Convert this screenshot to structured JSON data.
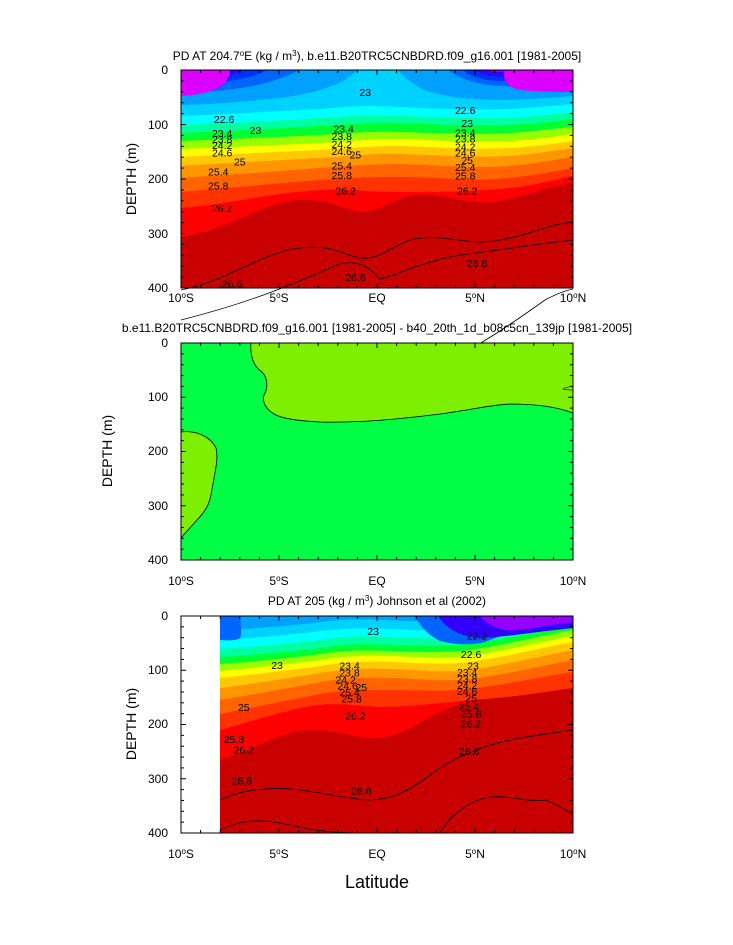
{
  "chart_data": [
    {
      "type": "heatmap",
      "title": "PD AT 204.7°E (kg / m³), b.e11.B20TRC5CNBDRD.f09_g16.001 [1981-2005]",
      "title_parts": [
        "PD AT 204.7",
        "o",
        "E (kg / m",
        "3",
        "), b.e11.B20TRC5CNBDRD.f09_g16.001 [1981-2005]"
      ],
      "ylabel": "DEPTH (m)",
      "xlabel": "",
      "x_range": [
        -10,
        10
      ],
      "y_range": [
        400,
        0
      ],
      "x_ticks": [
        -10,
        -5,
        0,
        5,
        10
      ],
      "y_ticks": [
        0,
        100,
        200,
        300,
        400
      ],
      "y_tick_labels": [
        "0",
        "100",
        "200",
        "300",
        "400"
      ],
      "data_extent": [
        -10,
        10
      ],
      "contour_interval": 0.2,
      "contour_labels": [
        {
          "text": "23",
          "x": -0.6,
          "y": 40
        },
        {
          "text": "22.6",
          "x": -7.8,
          "y": 90
        },
        {
          "text": "23",
          "x": -6.2,
          "y": 110
        },
        {
          "text": "23.4",
          "x": -7.9,
          "y": 116
        },
        {
          "text": "23.8",
          "x": -7.9,
          "y": 127
        },
        {
          "text": "24.2",
          "x": -7.9,
          "y": 138
        },
        {
          "text": "24.6",
          "x": -7.9,
          "y": 151
        },
        {
          "text": "25",
          "x": -7.0,
          "y": 168
        },
        {
          "text": "25.4",
          "x": -8.1,
          "y": 186
        },
        {
          "text": "25.8",
          "x": -8.1,
          "y": 212
        },
        {
          "text": "26.2",
          "x": -7.9,
          "y": 253
        },
        {
          "text": "26.6",
          "x": -7.4,
          "y": 392
        },
        {
          "text": "23.4",
          "x": -1.7,
          "y": 107
        },
        {
          "text": "23.8",
          "x": -1.8,
          "y": 121
        },
        {
          "text": "24.2",
          "x": -1.8,
          "y": 136
        },
        {
          "text": "24.6",
          "x": -1.8,
          "y": 149
        },
        {
          "text": "25",
          "x": -1.1,
          "y": 155
        },
        {
          "text": "25.4",
          "x": -1.8,
          "y": 175
        },
        {
          "text": "25.8",
          "x": -1.8,
          "y": 193
        },
        {
          "text": "26.2",
          "x": -1.6,
          "y": 221
        },
        {
          "text": "26.6",
          "x": -1.1,
          "y": 380
        },
        {
          "text": "22.6",
          "x": 4.5,
          "y": 73
        },
        {
          "text": "23",
          "x": 4.6,
          "y": 97
        },
        {
          "text": "23.4",
          "x": 4.5,
          "y": 115
        },
        {
          "text": "23.8",
          "x": 4.5,
          "y": 126
        },
        {
          "text": "24.2",
          "x": 4.5,
          "y": 140
        },
        {
          "text": "24.6",
          "x": 4.5,
          "y": 151
        },
        {
          "text": "25",
          "x": 4.6,
          "y": 165
        },
        {
          "text": "25.4",
          "x": 4.5,
          "y": 178
        },
        {
          "text": "25.8",
          "x": 4.5,
          "y": 194
        },
        {
          "text": "26.2",
          "x": 4.6,
          "y": 221
        },
        {
          "text": "26.8",
          "x": 5.1,
          "y": 354
        }
      ],
      "grid": false,
      "legend": "none",
      "colors": {
        "low": "#cc00ff",
        "mid": "#00ff33",
        "high": "#c80000"
      }
    },
    {
      "type": "heatmap",
      "title": "b.e11.B20TRC5CNBDRD.f09_g16.001 [1981-2005] - b40_20th_1d_b08c5cn_139jp [1981-2005]",
      "ylabel": "DEPTH (m)",
      "xlabel": "",
      "x_range": [
        -10,
        10
      ],
      "y_range": [
        400,
        0
      ],
      "x_ticks": [
        -10,
        -5,
        0,
        5,
        10
      ],
      "y_ticks": [
        0,
        100,
        200,
        300,
        400
      ],
      "y_tick_labels": [
        "0",
        "100",
        "200",
        "300",
        "400"
      ],
      "data_extent": [
        -10,
        10
      ],
      "regions": [
        {
          "color": "#00ff44",
          "description": "main field"
        },
        {
          "color": "#7cf000",
          "description": "upper-right region, surface to ~110–150 m"
        },
        {
          "color": "#7cf000",
          "description": "left-edge region below ~90 m"
        }
      ],
      "contour_labels": [],
      "grid": false,
      "legend": "none"
    },
    {
      "type": "heatmap",
      "title": "PD AT 205 (kg / m³) Johnson et al (2002)",
      "title_parts": [
        "PD AT 205 (kg / m",
        "3",
        ") Johnson et al (2002)"
      ],
      "ylabel": "DEPTH (m)",
      "xlabel": "Latitude",
      "x_range": [
        -10,
        10
      ],
      "y_range": [
        400,
        0
      ],
      "x_ticks": [
        -10,
        -5,
        0,
        5,
        10
      ],
      "y_ticks": [
        0,
        100,
        200,
        300,
        400
      ],
      "y_tick_labels": [
        "0",
        "100",
        "200",
        "300",
        "400"
      ],
      "data_extent": [
        -8,
        10
      ],
      "contour_interval": 0.2,
      "contour_labels": [
        {
          "text": "23",
          "x": -0.2,
          "y": 28
        },
        {
          "text": "22.2",
          "x": 5.1,
          "y": 36
        },
        {
          "text": "22.6",
          "x": 4.8,
          "y": 70
        },
        {
          "text": "23",
          "x": -5.1,
          "y": 90
        },
        {
          "text": "23",
          "x": 4.9,
          "y": 91
        },
        {
          "text": "23.4",
          "x": -1.4,
          "y": 91
        },
        {
          "text": "23.8",
          "x": -1.4,
          "y": 104
        },
        {
          "text": "24.2",
          "x": -1.6,
          "y": 117
        },
        {
          "text": "24.6",
          "x": -1.5,
          "y": 128
        },
        {
          "text": "25",
          "x": -0.8,
          "y": 131
        },
        {
          "text": "25.4",
          "x": -1.4,
          "y": 140
        },
        {
          "text": "25.8",
          "x": -1.3,
          "y": 152
        },
        {
          "text": "26.2",
          "x": -1.1,
          "y": 183
        },
        {
          "text": "23.4",
          "x": 4.6,
          "y": 103
        },
        {
          "text": "23.8",
          "x": 4.6,
          "y": 115
        },
        {
          "text": "24.2",
          "x": 4.6,
          "y": 127
        },
        {
          "text": "24.6",
          "x": 4.6,
          "y": 138
        },
        {
          "text": "25",
          "x": 4.8,
          "y": 151
        },
        {
          "text": "25.4",
          "x": 4.7,
          "y": 166
        },
        {
          "text": "25.8",
          "x": 4.8,
          "y": 180
        },
        {
          "text": "26.2",
          "x": 4.8,
          "y": 198
        },
        {
          "text": "25",
          "x": -6.8,
          "y": 168
        },
        {
          "text": "25.8",
          "x": -7.3,
          "y": 227
        },
        {
          "text": "26.2",
          "x": -6.8,
          "y": 246
        },
        {
          "text": "26.6",
          "x": -6.9,
          "y": 303
        },
        {
          "text": "26.6",
          "x": -0.8,
          "y": 322
        },
        {
          "text": "26.6",
          "x": 4.7,
          "y": 249
        }
      ],
      "grid": false,
      "legend": "none"
    }
  ]
}
